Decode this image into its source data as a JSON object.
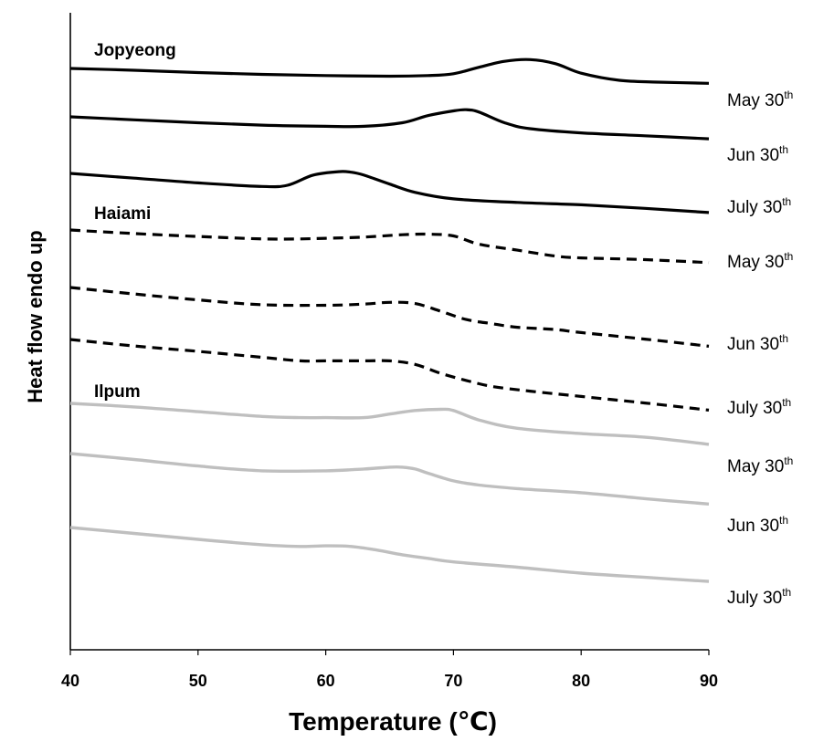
{
  "chart_data": {
    "type": "line",
    "xlabel": "Temperature (℃)",
    "ylabel": "Heat flow endo up",
    "xlim": [
      40,
      90
    ],
    "x_ticks": [
      40,
      50,
      60,
      70,
      80,
      90
    ],
    "grid": false,
    "groups": [
      {
        "label": "Jopyeong",
        "line_style": "solid",
        "color": "#000000"
      },
      {
        "label": "Haiami",
        "line_style": "dashed",
        "color": "#000000"
      },
      {
        "label": "Ilpum",
        "line_style": "solid",
        "color": "#bfbfbf"
      }
    ],
    "series": [
      {
        "group": "Jopyeong",
        "label_main": "May 30",
        "label_sup": "th",
        "x": [
          40,
          45,
          50,
          55,
          60,
          65,
          68,
          70,
          72,
          74,
          76,
          78,
          80,
          83,
          86,
          90
        ],
        "y": [
          0.0,
          -0.3,
          -0.7,
          -1.0,
          -1.2,
          -1.3,
          -1.2,
          -0.9,
          0.2,
          1.2,
          1.5,
          0.8,
          -0.8,
          -2.0,
          -2.3,
          -2.5
        ]
      },
      {
        "group": "Jopyeong",
        "label_main": "Jun 30",
        "label_sup": "th",
        "x": [
          40,
          45,
          50,
          55,
          60,
          63,
          66,
          68,
          70,
          71,
          72,
          74,
          76,
          80,
          85,
          90
        ],
        "y": [
          0.0,
          -0.5,
          -1.0,
          -1.4,
          -1.6,
          -1.6,
          -1.0,
          0.2,
          1.0,
          1.2,
          0.8,
          -1.0,
          -2.0,
          -2.7,
          -3.2,
          -3.7
        ]
      },
      {
        "group": "Jopyeong",
        "label_main": "July 30",
        "label_sup": "th",
        "x": [
          40,
          45,
          50,
          55,
          57,
          59,
          61,
          62,
          63,
          65,
          67,
          70,
          75,
          80,
          85,
          90
        ],
        "y": [
          0.0,
          -0.8,
          -1.6,
          -2.2,
          -2.0,
          -0.3,
          0.3,
          0.2,
          -0.3,
          -1.8,
          -3.2,
          -4.3,
          -4.9,
          -5.3,
          -5.9,
          -6.6
        ]
      },
      {
        "group": "Haiami",
        "label_main": "May 30",
        "label_sup": "th",
        "x": [
          40,
          45,
          50,
          55,
          58,
          60,
          63,
          66,
          68,
          70,
          72,
          75,
          78,
          80,
          85,
          90
        ],
        "y": [
          0.0,
          -0.6,
          -1.1,
          -1.5,
          -1.5,
          -1.4,
          -1.2,
          -0.8,
          -0.7,
          -1.0,
          -2.4,
          -3.4,
          -4.4,
          -4.7,
          -5.0,
          -5.5
        ]
      },
      {
        "group": "Haiami",
        "label_main": "",
        "label_sup": "",
        "x": [
          40,
          45,
          50,
          55,
          60,
          63,
          65,
          67,
          69,
          71,
          73,
          75,
          78,
          80,
          85,
          90
        ],
        "y": [
          0.0,
          -1.1,
          -2.1,
          -2.9,
          -3.0,
          -2.8,
          -2.5,
          -2.7,
          -4.0,
          -5.4,
          -6.1,
          -6.7,
          -7.1,
          -7.6,
          -8.7,
          -9.9
        ]
      },
      {
        "group": "Haiami",
        "label_main": "Jun 30",
        "label_sup": "th",
        "x": [
          40,
          45,
          50,
          55,
          58,
          60,
          63,
          65,
          67,
          69,
          71,
          73,
          76,
          80,
          85,
          90
        ],
        "y": [
          0.0,
          -1.1,
          -2.0,
          -3.0,
          -3.6,
          -3.6,
          -3.6,
          -3.6,
          -4.2,
          -5.7,
          -6.9,
          -7.9,
          -8.7,
          -9.6,
          -10.7,
          -11.9
        ]
      },
      {
        "group": "Ilpum",
        "label_main": "July 30",
        "label_sup": "th",
        "x": [
          40,
          45,
          50,
          55,
          58,
          60,
          63,
          65,
          67,
          69,
          70,
          72,
          75,
          80,
          85,
          90
        ],
        "y": [
          0.0,
          -0.6,
          -1.4,
          -2.2,
          -2.4,
          -2.4,
          -2.4,
          -1.8,
          -1.2,
          -1.0,
          -1.2,
          -2.8,
          -4.2,
          -5.1,
          -5.7,
          -6.9
        ]
      },
      {
        "group": "Ilpum",
        "label_main": "May 30",
        "label_sup": "th",
        "x": [
          40,
          45,
          50,
          55,
          60,
          63,
          65,
          66,
          67,
          68,
          70,
          72,
          75,
          80,
          85,
          90
        ],
        "y": [
          0.0,
          -1.0,
          -2.1,
          -2.9,
          -2.9,
          -2.6,
          -2.3,
          -2.3,
          -2.6,
          -3.3,
          -4.6,
          -5.3,
          -5.9,
          -6.6,
          -7.6,
          -8.5
        ]
      },
      {
        "group": "Ilpum",
        "label_main": "Jun 30",
        "label_sup": "th",
        "x": [
          40,
          45,
          50,
          55,
          58,
          60,
          62,
          64,
          66,
          68,
          70,
          75,
          80,
          85,
          90
        ],
        "y": [
          0.0,
          -1.0,
          -2.0,
          -2.9,
          -3.2,
          -3.1,
          -3.2,
          -3.8,
          -4.6,
          -5.2,
          -5.8,
          -6.7,
          -7.7,
          -8.4,
          -9.1
        ]
      }
    ],
    "side_labels": [
      {
        "main": "July 30",
        "sup": "th"
      }
    ]
  }
}
